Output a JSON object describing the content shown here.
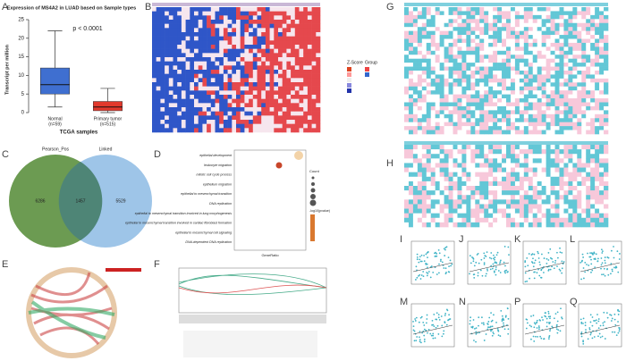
{
  "chart_data": {
    "type": "box",
    "title": "Expression of MS4A2 in LUAD based on Sample types",
    "ylabel": "Transcript per million",
    "xlabel": "TCGA samples",
    "annotation": "p < 0.0001",
    "categories": [
      "Normal",
      "Primary tumor"
    ],
    "category_notes": [
      "(n=59)",
      "(n=515)"
    ],
    "boxes": [
      {
        "min": 1.5,
        "q1": 5,
        "median": 7.5,
        "q3": 12,
        "max": 22,
        "color": "#3f6fd0"
      },
      {
        "min": 0,
        "q1": 0.5,
        "median": 1.5,
        "q3": 3,
        "max": 6.5,
        "color": "#e2392c"
      }
    ],
    "ylim": [
      0,
      25
    ],
    "yticks": [
      0,
      5,
      10,
      15,
      20,
      25
    ]
  },
  "figure": {
    "panel_labels": {
      "A": "A",
      "B": "B",
      "C": "C",
      "D": "D",
      "E": "E",
      "F": "F",
      "G": "G",
      "H": "H",
      "I": "I",
      "J": "J",
      "K": "K",
      "L": "L",
      "M": "M",
      "N": "N",
      "P": "P",
      "Q": "Q"
    },
    "heatmap_legend": {
      "title": "Z-Score",
      "group": "Group"
    },
    "venn": {
      "left": "Pearson_Pos",
      "right": "Linked",
      "left_only": "6286",
      "both": "1457",
      "right_only": "5529"
    },
    "dotplot": {
      "terms": [
        "epithelial development",
        "leukocyte migration",
        "mitotic cell cycle process",
        "epithelium migration",
        "epithelial to mesenchymal transition",
        "DNA replication",
        "epithelial to mesenchymal transition involved in lung morphogenesis",
        "epithelial to mesenchymal transition involved in cardiac fibroblast formation",
        "epithelial to mesenchymal cell signaling",
        "DNA-dependent DNA replication"
      ],
      "xlabel": "GeneRatio",
      "size_title": "Count",
      "color_title": "-log10(pvalue)"
    }
  }
}
